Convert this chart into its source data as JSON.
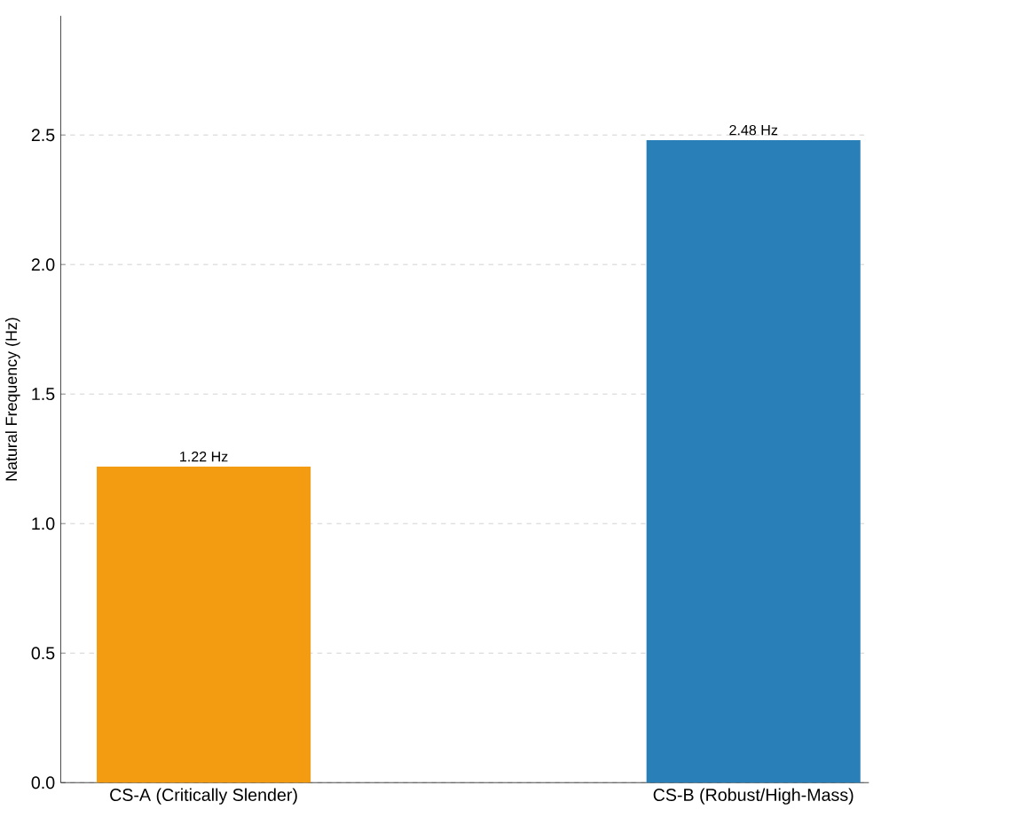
{
  "chart_data": {
    "type": "bar",
    "ylabel": "Natural Frequency (Hz)",
    "categories": [
      "CS-A (Critically Slender)",
      "CS-B (Robust/High-Mass)"
    ],
    "values": [
      1.22,
      2.48
    ],
    "colors": [
      "#f39c12",
      "#2980b9"
    ],
    "value_labels": [
      "1.22 Hz",
      "2.48 Hz"
    ],
    "ylim": [
      0,
      2.96
    ],
    "yticks": [
      {
        "value": 0,
        "label": "0.0"
      },
      {
        "value": 0.5,
        "label": "0.5"
      },
      {
        "value": 1,
        "label": "1.0"
      },
      {
        "value": 1.5,
        "label": "1.5"
      },
      {
        "value": 2,
        "label": "2.0"
      },
      {
        "value": 2.5,
        "label": "2.5"
      }
    ],
    "grid": "y"
  }
}
